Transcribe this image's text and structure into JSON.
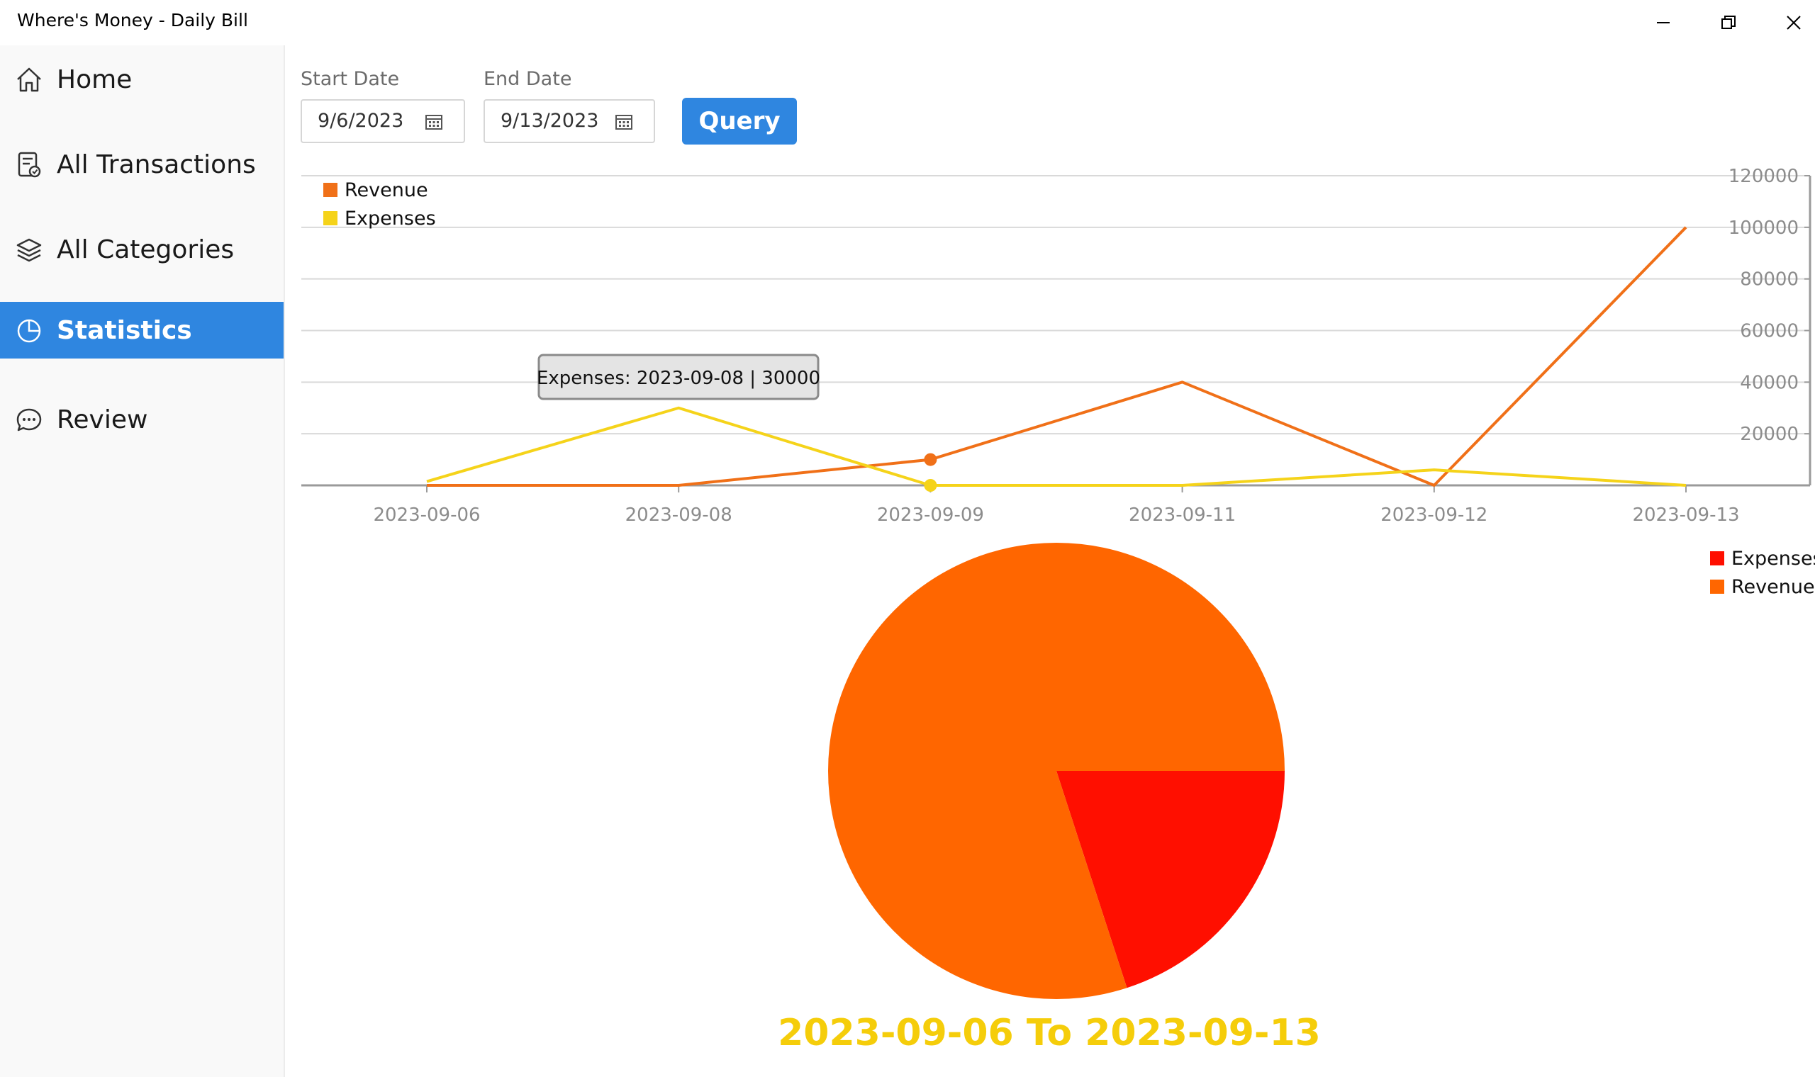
{
  "window": {
    "title": "Where's Money - Daily Bill"
  },
  "sidebar": {
    "items": [
      {
        "label": "Home",
        "icon": "home-icon"
      },
      {
        "label": "All Transactions",
        "icon": "receipt-icon"
      },
      {
        "label": "All Categories",
        "icon": "layers-icon"
      },
      {
        "label": "Statistics",
        "icon": "pie-chart-icon",
        "active": true
      },
      {
        "label": "Review",
        "icon": "chat-bubble-icon"
      }
    ]
  },
  "filters": {
    "start_label": "Start Date",
    "start_value": "9/6/2023",
    "end_label": "End Date",
    "end_value": "9/13/2023",
    "query_label": "Query"
  },
  "colors": {
    "accent": "#2f86e0",
    "revenue": "#f07018",
    "expenses": "#f5d31a",
    "pie_expenses": "#ff0f00",
    "pie_revenue": "#ff6600",
    "range_text": "#f5cd0a"
  },
  "tooltip": {
    "text": "Expenses: 2023-09-08 | 30000"
  },
  "chart_data": [
    {
      "type": "line",
      "categories": [
        "2023-09-06",
        "2023-09-08",
        "2023-09-09",
        "2023-09-11",
        "2023-09-12",
        "2023-09-13"
      ],
      "series": [
        {
          "name": "Revenue",
          "values": [
            0,
            0,
            10000,
            40000,
            0,
            100000
          ]
        },
        {
          "name": "Expenses",
          "values": [
            1500,
            30000,
            0,
            0,
            6000,
            0
          ]
        }
      ],
      "ylim": [
        0,
        120000
      ],
      "yticks": [
        20000,
        40000,
        60000,
        80000,
        100000,
        120000
      ],
      "grid": true,
      "legend": "top-left",
      "y_axis_side": "right",
      "highlighted_category": "2023-09-09"
    },
    {
      "type": "pie",
      "labels": [
        "Expenses",
        "Revenue"
      ],
      "values": [
        37500,
        150000
      ],
      "legend": "top-right",
      "caption": "2023-09-06 To 2023-09-13"
    }
  ]
}
